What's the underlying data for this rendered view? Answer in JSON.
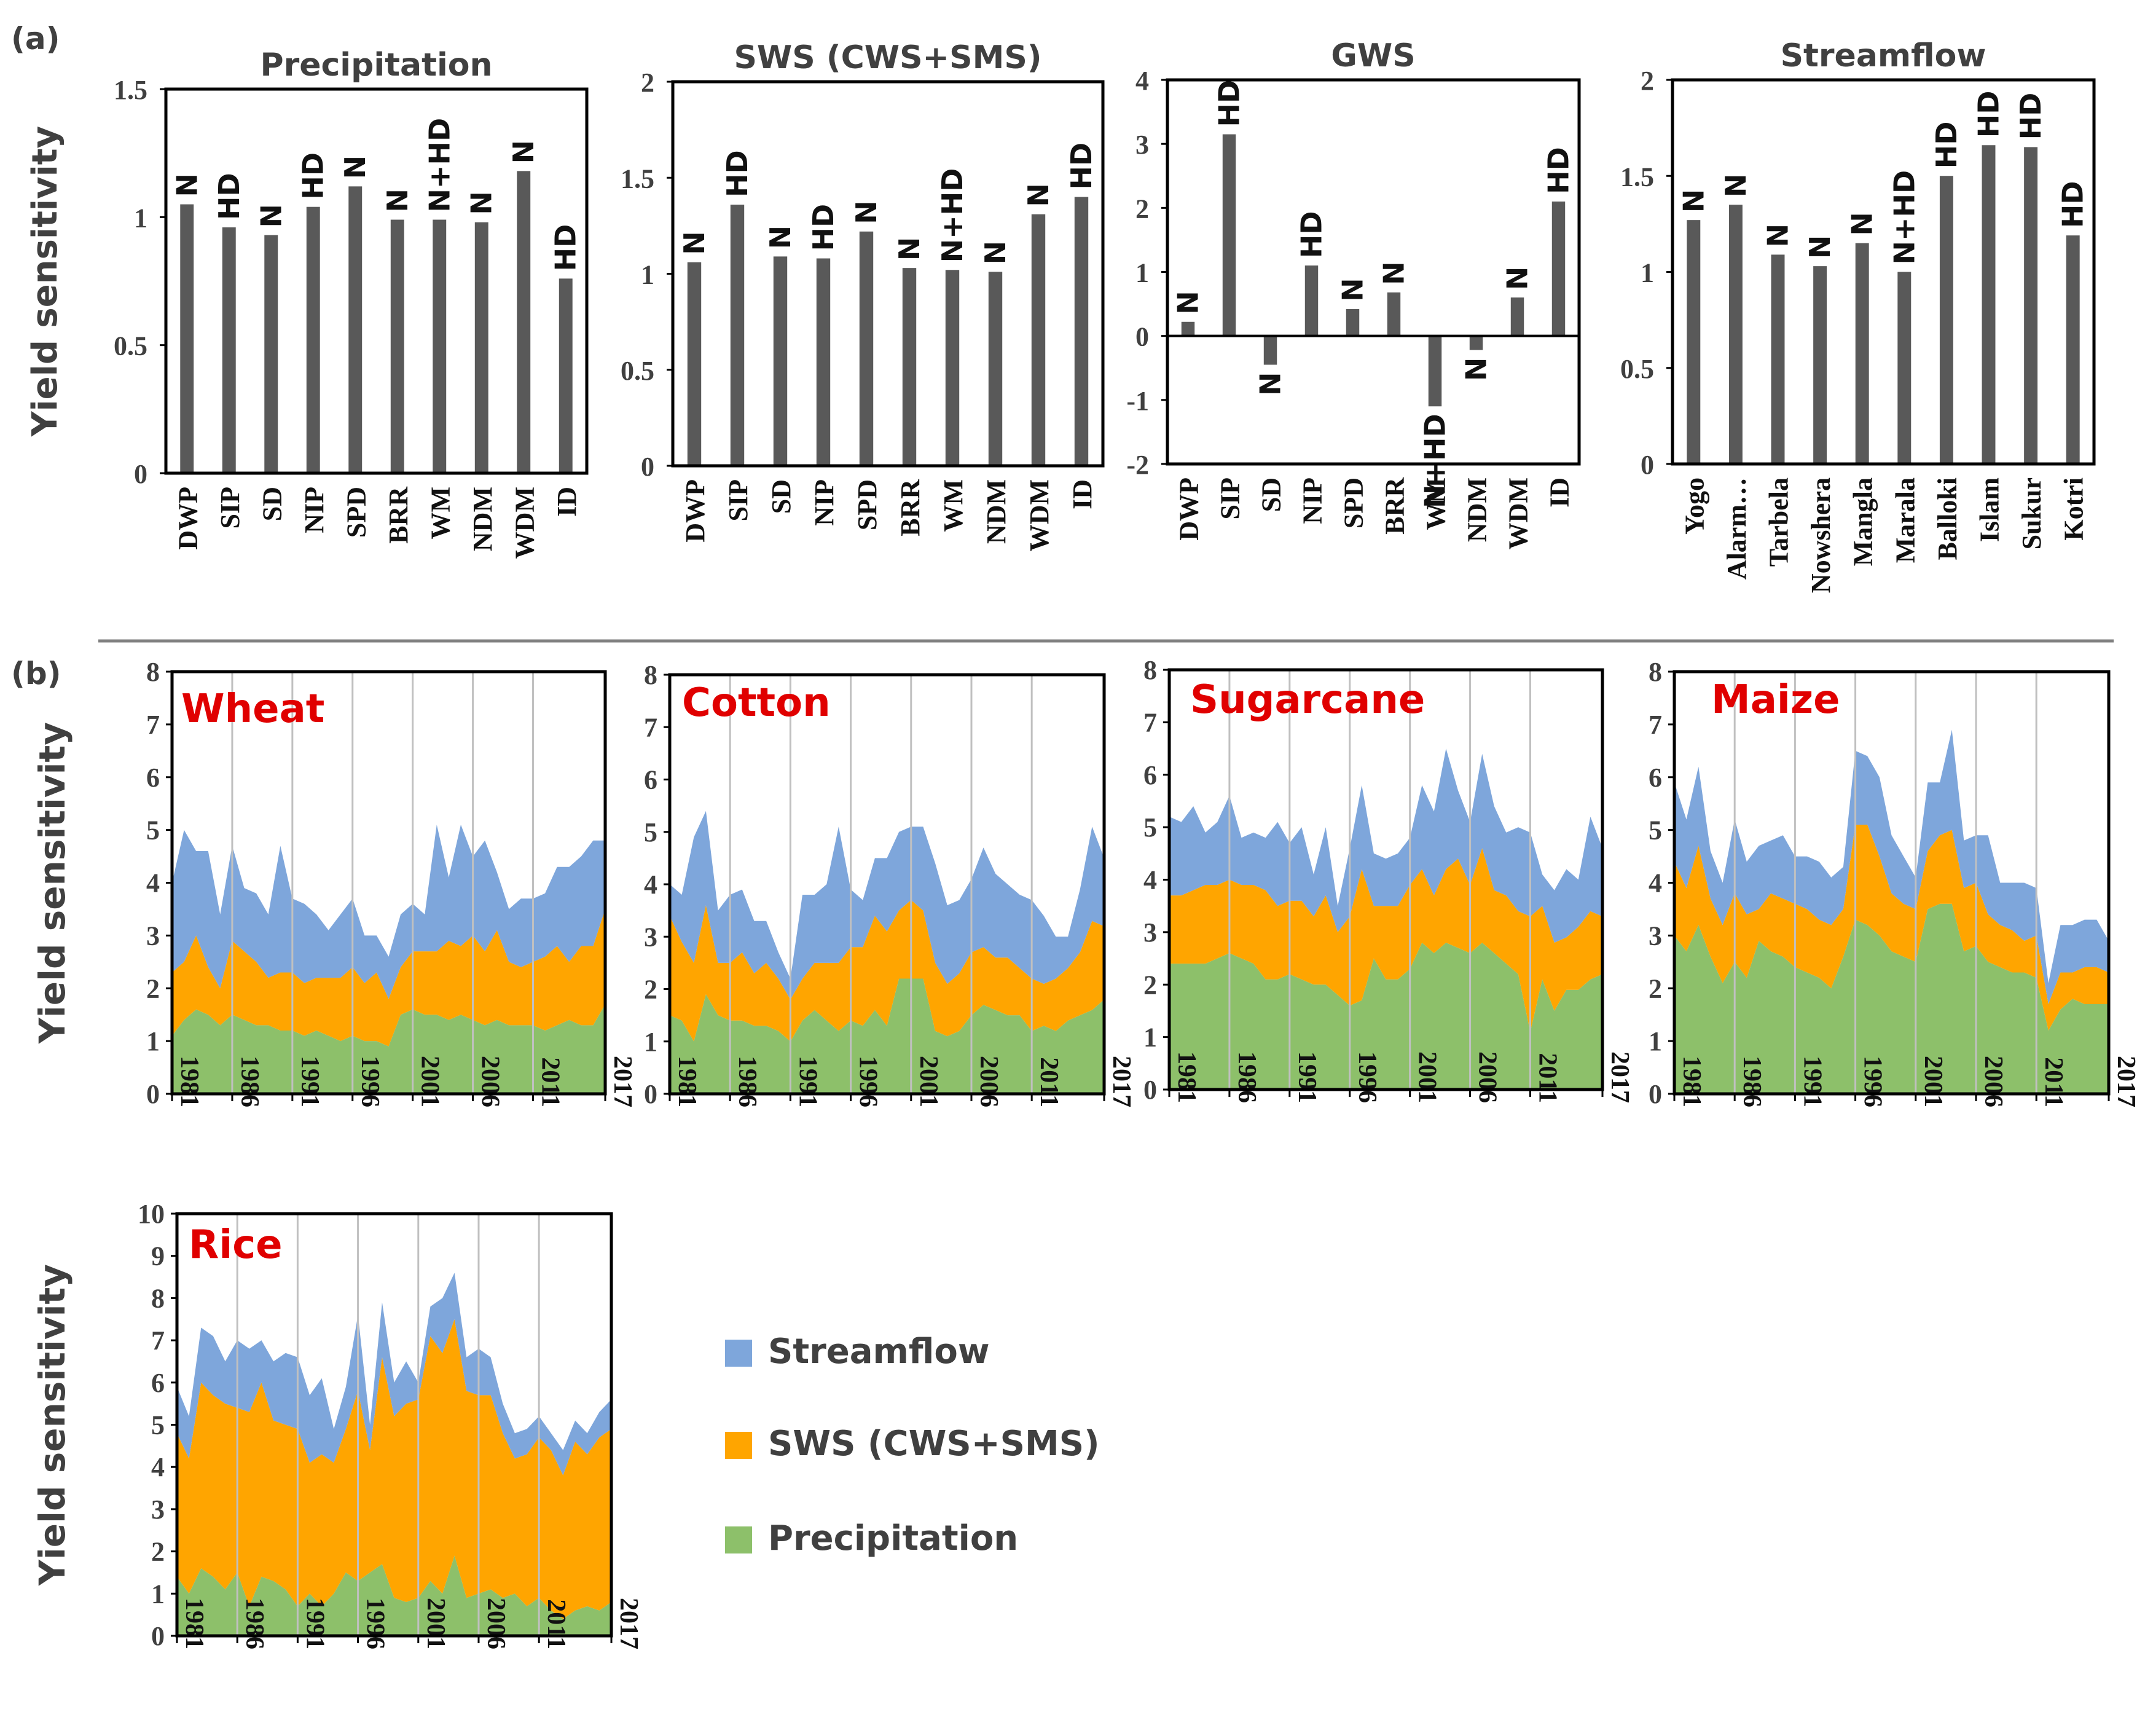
{
  "figure": {
    "panel_a_label": "(a)",
    "panel_b_label": "(b)",
    "y_axis_label": "Yield sensitivity",
    "colors": {
      "bar": "#595959",
      "streamflow": "#7EA6DB",
      "sws": "#FFA500",
      "precipitation": "#8DC06A",
      "crop_title": "#E00000",
      "text": "#404040",
      "gridline": "#C0C0C0"
    }
  },
  "chart_data": [
    {
      "type": "bar",
      "title": "Precipitation",
      "categories": [
        "DWP",
        "SIP",
        "SD",
        "NIP",
        "SPD",
        "BRR",
        "WM",
        "NDM",
        "WDM",
        "ID"
      ],
      "values": [
        1.05,
        0.96,
        0.93,
        1.04,
        1.12,
        0.99,
        0.99,
        0.98,
        1.18,
        0.76
      ],
      "labels": [
        "N",
        "HD",
        "N",
        "HD",
        "N",
        "N",
        "N+HD",
        "N",
        "N",
        "HD"
      ],
      "ylim": [
        0,
        1.5
      ],
      "yticks": [
        "0",
        "0.5",
        "1",
        "1.5"
      ],
      "ylabel": "Yield sensitivity"
    },
    {
      "type": "bar",
      "title": "SWS (CWS+SMS)",
      "categories": [
        "DWP",
        "SIP",
        "SD",
        "NIP",
        "SPD",
        "BRR",
        "WM",
        "NDM",
        "WDM",
        "ID"
      ],
      "values": [
        1.06,
        1.36,
        1.09,
        1.08,
        1.22,
        1.03,
        1.02,
        1.01,
        1.31,
        1.4
      ],
      "labels": [
        "N",
        "HD",
        "N",
        "HD",
        "N",
        "N",
        "N+HD",
        "N",
        "N",
        "HD"
      ],
      "ylim": [
        0,
        2
      ],
      "yticks": [
        "0",
        "0.5",
        "1",
        "1.5",
        "2"
      ]
    },
    {
      "type": "bar",
      "title": "GWS",
      "categories": [
        "DWP",
        "SIP",
        "SD",
        "NIP",
        "SPD",
        "BRR",
        "WM",
        "NDM",
        "WDM",
        "ID"
      ],
      "values": [
        0.22,
        3.15,
        -0.45,
        1.1,
        0.42,
        0.68,
        -1.1,
        -0.22,
        0.6,
        2.1
      ],
      "labels": [
        "N",
        "HD",
        "N",
        "HD",
        "N",
        "N",
        "N+HD",
        "N",
        "N",
        "HD"
      ],
      "ylim": [
        -2,
        4
      ],
      "yticks": [
        "-2",
        "-1",
        "0",
        "1",
        "2",
        "3",
        "4"
      ]
    },
    {
      "type": "bar",
      "title": "Streamflow",
      "categories": [
        "Yogo",
        "Alarm…",
        "Tarbela",
        "Nowshera",
        "Mangla",
        "Marala",
        "Balloki",
        "Islam",
        "Sukur",
        "Kotri"
      ],
      "values": [
        1.27,
        1.35,
        1.09,
        1.03,
        1.15,
        1.0,
        1.5,
        1.66,
        1.65,
        1.19
      ],
      "labels": [
        "N",
        "N",
        "N",
        "N",
        "N",
        "N+HD",
        "HD",
        "HD",
        "HD",
        "HD"
      ],
      "ylim": [
        0,
        2
      ],
      "yticks": [
        "0",
        "0.5",
        "1",
        "1.5",
        "2"
      ]
    },
    {
      "type": "area",
      "title": "Wheat",
      "x": [
        1981,
        1982,
        1983,
        1984,
        1985,
        1986,
        1987,
        1988,
        1989,
        1990,
        1991,
        1992,
        1993,
        1994,
        1995,
        1996,
        1997,
        1998,
        1999,
        2000,
        2001,
        2002,
        2003,
        2004,
        2005,
        2006,
        2007,
        2008,
        2009,
        2010,
        2011,
        2012,
        2013,
        2014,
        2015,
        2016,
        2017
      ],
      "series": [
        {
          "name": "Precipitation",
          "values": [
            1.1,
            1.4,
            1.6,
            1.5,
            1.3,
            1.5,
            1.4,
            1.3,
            1.3,
            1.2,
            1.2,
            1.1,
            1.2,
            1.1,
            1.0,
            1.1,
            1.0,
            1.0,
            0.9,
            1.5,
            1.6,
            1.5,
            1.5,
            1.4,
            1.5,
            1.4,
            1.3,
            1.4,
            1.3,
            1.3,
            1.3,
            1.2,
            1.3,
            1.4,
            1.3,
            1.3,
            1.7
          ]
        },
        {
          "name": "SWS (CWS+SMS)",
          "values": [
            1.2,
            1.1,
            1.4,
            0.9,
            0.7,
            1.4,
            1.3,
            1.2,
            0.9,
            1.1,
            1.1,
            1.0,
            1.0,
            1.1,
            1.2,
            1.3,
            1.1,
            1.3,
            0.9,
            0.9,
            1.1,
            1.2,
            1.2,
            1.5,
            1.3,
            1.6,
            1.4,
            1.7,
            1.2,
            1.1,
            1.2,
            1.4,
            1.5,
            1.1,
            1.5,
            1.5,
            1.8
          ]
        },
        {
          "name": "Streamflow",
          "values": [
            1.7,
            2.5,
            1.6,
            2.2,
            1.4,
            1.8,
            1.2,
            1.3,
            1.2,
            2.4,
            1.4,
            1.5,
            1.2,
            0.9,
            1.2,
            1.3,
            0.9,
            0.7,
            0.8,
            1.0,
            0.9,
            0.7,
            2.4,
            1.2,
            2.3,
            1.5,
            2.1,
            1.1,
            1.0,
            1.3,
            1.2,
            1.2,
            1.5,
            1.8,
            1.7,
            2.0,
            1.3
          ]
        }
      ],
      "ylim": [
        0,
        8
      ],
      "yticks": [
        "0",
        "1",
        "2",
        "3",
        "4",
        "5",
        "6",
        "7",
        "8"
      ],
      "xticks": [
        "1981",
        "1986",
        "1991",
        "1996",
        "2001",
        "2006",
        "2011",
        "2017"
      ],
      "ylabel": "Yield sensitivity"
    },
    {
      "type": "area",
      "title": "Cotton",
      "x": [
        1981,
        1982,
        1983,
        1984,
        1985,
        1986,
        1987,
        1988,
        1989,
        1990,
        1991,
        1992,
        1993,
        1994,
        1995,
        1996,
        1997,
        1998,
        1999,
        2000,
        2001,
        2002,
        2003,
        2004,
        2005,
        2006,
        2007,
        2008,
        2009,
        2010,
        2011,
        2012,
        2013,
        2014,
        2015,
        2016,
        2017
      ],
      "series": [
        {
          "name": "Precipitation",
          "values": [
            1.5,
            1.4,
            1.0,
            1.9,
            1.5,
            1.4,
            1.4,
            1.3,
            1.3,
            1.2,
            1.0,
            1.4,
            1.6,
            1.4,
            1.2,
            1.4,
            1.3,
            1.6,
            1.3,
            2.2,
            2.2,
            2.2,
            1.2,
            1.1,
            1.2,
            1.5,
            1.7,
            1.6,
            1.5,
            1.5,
            1.2,
            1.3,
            1.2,
            1.4,
            1.5,
            1.6,
            1.8
          ]
        },
        {
          "name": "SWS (CWS+SMS)",
          "values": [
            1.9,
            1.5,
            1.5,
            1.7,
            1.0,
            1.1,
            1.3,
            1.0,
            1.2,
            1.0,
            0.8,
            0.8,
            0.9,
            1.1,
            1.3,
            1.4,
            1.5,
            1.8,
            1.8,
            1.3,
            1.5,
            1.3,
            1.3,
            1.0,
            1.1,
            1.2,
            1.1,
            1.0,
            1.1,
            0.9,
            1.0,
            0.8,
            1.0,
            1.0,
            1.2,
            1.7,
            1.4
          ]
        },
        {
          "name": "Streamflow",
          "values": [
            0.6,
            0.9,
            2.4,
            1.8,
            1.0,
            1.3,
            1.2,
            1.0,
            0.8,
            0.5,
            0.4,
            1.6,
            1.3,
            1.5,
            2.6,
            1.1,
            0.9,
            1.1,
            1.4,
            1.5,
            1.4,
            1.6,
            1.9,
            1.5,
            1.4,
            1.4,
            1.9,
            1.6,
            1.4,
            1.4,
            1.5,
            1.3,
            0.8,
            0.6,
            1.2,
            1.8,
            1.3
          ]
        }
      ],
      "ylim": [
        0,
        8
      ],
      "yticks": [
        "0",
        "1",
        "2",
        "3",
        "4",
        "5",
        "6",
        "7",
        "8"
      ],
      "xticks": [
        "1981",
        "1986",
        "1991",
        "1996",
        "2001",
        "2006",
        "2011",
        "2017"
      ]
    },
    {
      "type": "area",
      "title": "Sugarcane",
      "x": [
        1981,
        1982,
        1983,
        1984,
        1985,
        1986,
        1987,
        1988,
        1989,
        1990,
        1991,
        1992,
        1993,
        1994,
        1995,
        1996,
        1997,
        1998,
        1999,
        2000,
        2001,
        2002,
        2003,
        2004,
        2005,
        2006,
        2007,
        2008,
        2009,
        2010,
        2011,
        2012,
        2013,
        2014,
        2015,
        2016,
        2017
      ],
      "series": [
        {
          "name": "Precipitation",
          "values": [
            2.4,
            2.4,
            2.4,
            2.4,
            2.5,
            2.6,
            2.5,
            2.4,
            2.1,
            2.1,
            2.2,
            2.1,
            2.0,
            2.0,
            1.8,
            1.6,
            1.7,
            2.5,
            2.1,
            2.1,
            2.3,
            2.8,
            2.6,
            2.8,
            2.7,
            2.6,
            2.8,
            2.6,
            2.4,
            2.2,
            1.1,
            2.1,
            1.5,
            1.9,
            1.9,
            2.1,
            2.2
          ]
        },
        {
          "name": "SWS (CWS+SMS)",
          "values": [
            1.3,
            1.3,
            1.4,
            1.5,
            1.4,
            1.4,
            1.4,
            1.5,
            1.7,
            1.4,
            1.4,
            1.5,
            1.3,
            1.7,
            1.2,
            1.7,
            2.5,
            1.0,
            1.4,
            1.4,
            1.6,
            1.4,
            1.1,
            1.4,
            1.7,
            1.3,
            1.8,
            1.2,
            1.3,
            1.2,
            2.2,
            1.4,
            1.3,
            1.0,
            1.2,
            1.3,
            1.1
          ]
        },
        {
          "name": "Streamflow",
          "values": [
            1.5,
            1.4,
            1.6,
            1.0,
            1.2,
            1.6,
            0.9,
            1.0,
            1.0,
            1.6,
            1.1,
            1.4,
            0.8,
            1.3,
            0.5,
            1.3,
            1.6,
            1.0,
            0.9,
            1.0,
            0.9,
            1.6,
            1.6,
            2.3,
            1.3,
            1.2,
            1.8,
            1.6,
            1.2,
            1.6,
            1.6,
            0.6,
            1.0,
            1.3,
            0.9,
            1.8,
            1.3
          ]
        }
      ],
      "ylim": [
        0,
        8
      ],
      "yticks": [
        "0",
        "1",
        "2",
        "3",
        "4",
        "5",
        "6",
        "7",
        "8"
      ],
      "xticks": [
        "1981",
        "1986",
        "1991",
        "1996",
        "2001",
        "2006",
        "2011",
        "2017"
      ]
    },
    {
      "type": "area",
      "title": "Maize",
      "x": [
        1981,
        1982,
        1983,
        1984,
        1985,
        1986,
        1987,
        1988,
        1989,
        1990,
        1991,
        1992,
        1993,
        1994,
        1995,
        1996,
        1997,
        1998,
        1999,
        2000,
        2001,
        2002,
        2003,
        2004,
        2005,
        2006,
        2007,
        2008,
        2009,
        2010,
        2011,
        2012,
        2013,
        2014,
        2015,
        2016,
        2017
      ],
      "series": [
        {
          "name": "Precipitation",
          "values": [
            3.0,
            2.7,
            3.2,
            2.6,
            2.1,
            2.5,
            2.2,
            2.9,
            2.7,
            2.6,
            2.4,
            2.3,
            2.2,
            2.0,
            2.6,
            3.3,
            3.2,
            3.0,
            2.7,
            2.6,
            2.5,
            3.5,
            3.6,
            3.6,
            2.7,
            2.8,
            2.5,
            2.4,
            2.3,
            2.3,
            2.2,
            1.2,
            1.6,
            1.8,
            1.7,
            1.7,
            1.7
          ]
        },
        {
          "name": "SWS (CWS+SMS)",
          "values": [
            1.4,
            1.2,
            1.5,
            1.1,
            1.1,
            1.3,
            1.2,
            0.6,
            1.1,
            1.1,
            1.2,
            1.2,
            1.1,
            1.2,
            0.9,
            1.8,
            1.9,
            1.5,
            1.1,
            1.0,
            1.0,
            1.1,
            1.3,
            1.4,
            1.2,
            1.2,
            0.9,
            0.8,
            0.8,
            0.6,
            0.8,
            0.5,
            0.7,
            0.5,
            0.7,
            0.7,
            0.6
          ]
        },
        {
          "name": "Streamflow",
          "values": [
            1.5,
            1.3,
            1.5,
            0.9,
            0.8,
            1.4,
            1.0,
            1.2,
            1.0,
            1.2,
            0.9,
            1.0,
            1.1,
            0.9,
            0.8,
            1.4,
            1.3,
            1.5,
            1.1,
            0.9,
            0.6,
            1.3,
            1.0,
            1.9,
            0.9,
            0.9,
            1.5,
            0.8,
            0.9,
            1.1,
            0.9,
            0.4,
            0.9,
            0.9,
            0.9,
            0.9,
            0.6
          ]
        }
      ],
      "ylim": [
        0,
        8
      ],
      "yticks": [
        "0",
        "1",
        "2",
        "3",
        "4",
        "5",
        "6",
        "7",
        "8"
      ],
      "xticks": [
        "1981",
        "1986",
        "1991",
        "1996",
        "2001",
        "2006",
        "2011",
        "2017"
      ]
    },
    {
      "type": "area",
      "title": "Rice",
      "x": [
        1981,
        1982,
        1983,
        1984,
        1985,
        1986,
        1987,
        1988,
        1989,
        1990,
        1991,
        1992,
        1993,
        1994,
        1995,
        1996,
        1997,
        1998,
        1999,
        2000,
        2001,
        2002,
        2003,
        2004,
        2005,
        2006,
        2007,
        2008,
        2009,
        2010,
        2011,
        2012,
        2013,
        2014,
        2015,
        2016,
        2017
      ],
      "series": [
        {
          "name": "Precipitation",
          "values": [
            1.4,
            1.0,
            1.6,
            1.4,
            1.1,
            1.5,
            0.7,
            1.4,
            1.3,
            1.1,
            0.7,
            1.0,
            0.7,
            1.0,
            1.5,
            1.3,
            1.5,
            1.7,
            0.9,
            0.8,
            0.9,
            1.3,
            1.0,
            1.9,
            0.9,
            1.0,
            1.1,
            0.9,
            1.0,
            0.7,
            0.9,
            0.6,
            0.4,
            0.6,
            0.7,
            0.6,
            0.8
          ]
        },
        {
          "name": "SWS (CWS+SMS)",
          "values": [
            3.4,
            3.2,
            4.4,
            4.3,
            4.4,
            3.9,
            4.6,
            4.6,
            3.8,
            3.9,
            4.2,
            3.1,
            3.6,
            3.1,
            3.4,
            4.5,
            2.9,
            4.9,
            4.3,
            4.7,
            4.7,
            5.8,
            5.7,
            5.6,
            4.9,
            4.7,
            4.6,
            3.9,
            3.2,
            3.6,
            3.8,
            3.8,
            3.4,
            4.0,
            3.6,
            4.1,
            4.1
          ]
        },
        {
          "name": "Streamflow",
          "values": [
            1.1,
            1.0,
            1.3,
            1.4,
            1.0,
            1.6,
            1.5,
            1.0,
            1.4,
            1.7,
            1.7,
            1.6,
            1.8,
            0.8,
            1.0,
            1.8,
            0.6,
            1.3,
            0.8,
            1.0,
            0.4,
            0.7,
            1.3,
            1.1,
            0.8,
            1.1,
            0.9,
            0.7,
            0.6,
            0.6,
            0.5,
            0.4,
            0.6,
            0.5,
            0.5,
            0.6,
            0.7
          ]
        }
      ],
      "ylim": [
        0,
        10
      ],
      "yticks": [
        "0",
        "1",
        "2",
        "3",
        "4",
        "5",
        "6",
        "7",
        "8",
        "9",
        "10"
      ],
      "xticks": [
        "1981",
        "1986",
        "1991",
        "1996",
        "2001",
        "2006",
        "2011",
        "2017"
      ],
      "ylabel": "Yield sensitivity"
    }
  ],
  "legend": {
    "items": [
      {
        "label": "Streamflow",
        "color": "#7EA6DB"
      },
      {
        "label": "SWS (CWS+SMS)",
        "color": "#FFA500"
      },
      {
        "label": "Precipitation",
        "color": "#8DC06A"
      }
    ]
  }
}
